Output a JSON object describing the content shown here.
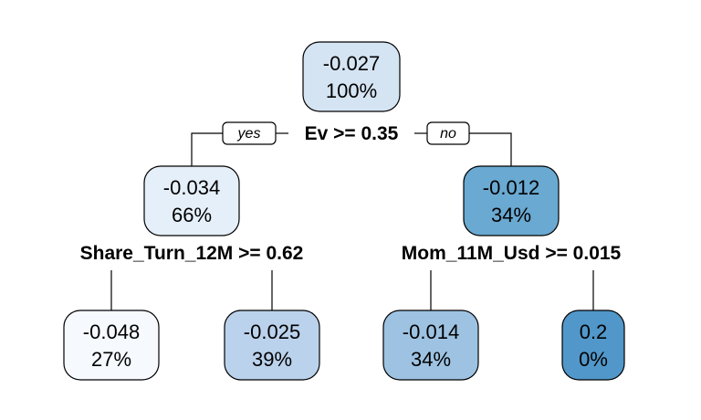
{
  "tree": {
    "edge_labels": {
      "yes": "yes",
      "no": "no"
    },
    "nodes": {
      "root": {
        "value": "-0.027",
        "percent": "100%",
        "fill": "#d5e4f3"
      },
      "left": {
        "value": "-0.034",
        "percent": "66%",
        "fill": "#e5eff9"
      },
      "right": {
        "value": "-0.012",
        "percent": "34%",
        "fill": "#6aa9d1"
      },
      "left_left": {
        "value": "-0.048",
        "percent": "27%",
        "fill": "#f6faff"
      },
      "left_right": {
        "value": "-0.025",
        "percent": "39%",
        "fill": "#bbd2ec"
      },
      "right_left": {
        "value": "-0.014",
        "percent": "34%",
        "fill": "#9ec3e2"
      },
      "right_right": {
        "value": "0.2",
        "percent": "0%",
        "fill": "#5197c9"
      }
    },
    "splits": {
      "root": "Ev >= 0.35",
      "left": "Share_Turn_12M >= 0.62",
      "right": "Mom_11M_Usd >= 0.015"
    }
  }
}
